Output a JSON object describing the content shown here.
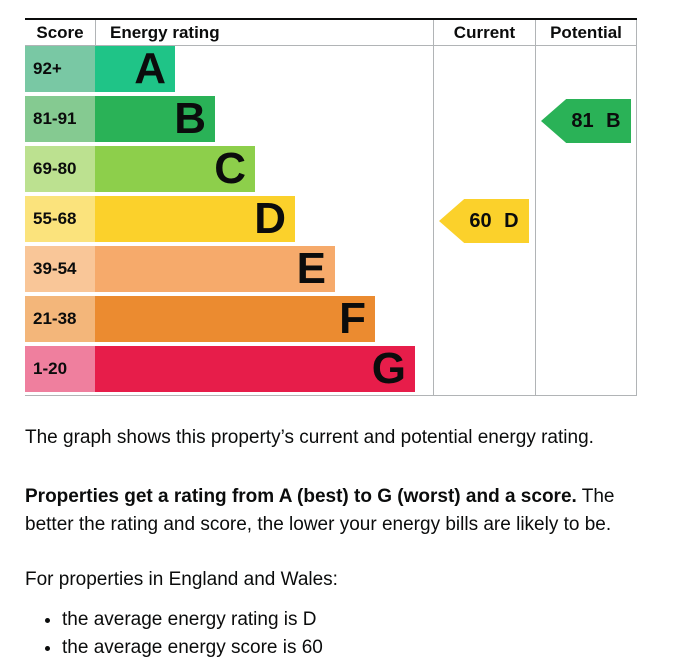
{
  "chart_data": {
    "type": "bar",
    "subtype": "epc-energy-rating",
    "columns": [
      "Score",
      "Energy rating",
      "Current",
      "Potential"
    ],
    "bands": [
      {
        "letter": "A",
        "score": "92+",
        "color": "#1fc487",
        "score_tint": "#79c8a4"
      },
      {
        "letter": "B",
        "score": "81-91",
        "color": "#2ab257",
        "score_tint": "#85ca91"
      },
      {
        "letter": "C",
        "score": "69-80",
        "color": "#8dcf4b",
        "score_tint": "#bce190"
      },
      {
        "letter": "D",
        "score": "55-68",
        "color": "#fbd12b",
        "score_tint": "#fbe37c"
      },
      {
        "letter": "E",
        "score": "39-54",
        "color": "#f6aa6b",
        "score_tint": "#f9c698"
      },
      {
        "letter": "F",
        "score": "21-38",
        "color": "#eb8b30",
        "score_tint": "#f3b67a"
      },
      {
        "letter": "G",
        "score": "1-20",
        "color": "#e71d4a",
        "score_tint": "#ef7f9e"
      }
    ],
    "current": {
      "score": 60,
      "band": "D",
      "label": "60 D",
      "color": "#fbd12b"
    },
    "potential": {
      "score": 81,
      "band": "B",
      "label": "81 B",
      "color": "#2ab257"
    }
  },
  "text": {
    "intro": "The graph shows this property’s current and potential energy rating.",
    "score_info_bold": "Properties get a rating from A (best) to G (worst) and a score.",
    "score_info_rest": "The better the rating and score, the lower your energy bills are likely to be.",
    "regions": "For properties in England and Wales:",
    "bullets": [
      "the average energy rating is D",
      "the average energy score is 60"
    ]
  }
}
